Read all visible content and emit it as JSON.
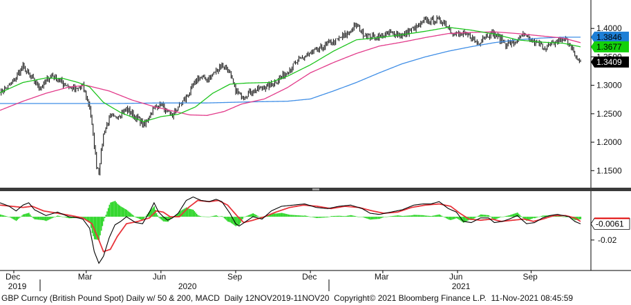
{
  "footer": {
    "caption": "GBP Curncy (British Pound Spot) Daily w/ 50 & 200, MACD  Daily 12NOV2019-11NOV20  Copyright© 2021 Bloomberg Finance L.P.  11-Nov-2021 08:45:59"
  },
  "chart_data": [
    {
      "type": "line",
      "panel": "price",
      "ylim": [
        1.12,
        1.45
      ],
      "yticks": [
        "1.4000",
        "1.3500",
        "1.3000",
        "1.2500",
        "1.2000",
        "1.1500"
      ],
      "x_months": [
        {
          "label": "Dec",
          "i": 12
        },
        {
          "label": "Mar",
          "i": 75
        },
        {
          "label": "Jun",
          "i": 140
        },
        {
          "label": "Sep",
          "i": 205
        },
        {
          "label": "Dec",
          "i": 270
        },
        {
          "label": "Mar",
          "i": 333
        },
        {
          "label": "Jun",
          "i": 398
        },
        {
          "label": "Sep",
          "i": 462
        }
      ],
      "x_years": [
        {
          "label": "2019",
          "i": 7
        },
        {
          "label": "2020",
          "i": 155
        },
        {
          "label": "2021",
          "i": 393
        }
      ],
      "close_points": [
        [
          0,
          1.288
        ],
        [
          10,
          1.302
        ],
        [
          20,
          1.334
        ],
        [
          25,
          1.318
        ],
        [
          35,
          1.296
        ],
        [
          45,
          1.318
        ],
        [
          55,
          1.303
        ],
        [
          66,
          1.292
        ],
        [
          72,
          1.299
        ],
        [
          78,
          1.262
        ],
        [
          84,
          1.16
        ],
        [
          86,
          1.15
        ],
        [
          90,
          1.214
        ],
        [
          95,
          1.243
        ],
        [
          100,
          1.243
        ],
        [
          110,
          1.258
        ],
        [
          118,
          1.244
        ],
        [
          126,
          1.23
        ],
        [
          133,
          1.258
        ],
        [
          140,
          1.268
        ],
        [
          145,
          1.251
        ],
        [
          150,
          1.246
        ],
        [
          155,
          1.263
        ],
        [
          162,
          1.278
        ],
        [
          172,
          1.312
        ],
        [
          182,
          1.312
        ],
        [
          192,
          1.335
        ],
        [
          198,
          1.33
        ],
        [
          205,
          1.29
        ],
        [
          210,
          1.281
        ],
        [
          220,
          1.29
        ],
        [
          228,
          1.296
        ],
        [
          236,
          1.301
        ],
        [
          245,
          1.315
        ],
        [
          255,
          1.334
        ],
        [
          265,
          1.351
        ],
        [
          275,
          1.36
        ],
        [
          285,
          1.372
        ],
        [
          292,
          1.378
        ],
        [
          300,
          1.388
        ],
        [
          310,
          1.406
        ],
        [
          315,
          1.393
        ],
        [
          322,
          1.384
        ],
        [
          330,
          1.386
        ],
        [
          340,
          1.392
        ],
        [
          350,
          1.388
        ],
        [
          356,
          1.395
        ],
        [
          362,
          1.402
        ],
        [
          370,
          1.413
        ],
        [
          378,
          1.415
        ],
        [
          385,
          1.413
        ],
        [
          390,
          1.402
        ],
        [
          395,
          1.39
        ],
        [
          400,
          1.389
        ],
        [
          410,
          1.386
        ],
        [
          416,
          1.372
        ],
        [
          420,
          1.385
        ],
        [
          428,
          1.392
        ],
        [
          435,
          1.382
        ],
        [
          440,
          1.373
        ],
        [
          448,
          1.375
        ],
        [
          455,
          1.388
        ],
        [
          462,
          1.378
        ],
        [
          468,
          1.373
        ],
        [
          474,
          1.366
        ],
        [
          480,
          1.372
        ],
        [
          486,
          1.379
        ],
        [
          492,
          1.382
        ],
        [
          497,
          1.366
        ],
        [
          502,
          1.345
        ],
        [
          505,
          1.3409
        ]
      ],
      "ma50_points": [
        [
          0,
          1.287
        ],
        [
          20,
          1.305
        ],
        [
          40,
          1.313
        ],
        [
          55,
          1.312
        ],
        [
          68,
          1.305
        ],
        [
          78,
          1.297
        ],
        [
          90,
          1.27
        ],
        [
          105,
          1.252
        ],
        [
          125,
          1.236
        ],
        [
          140,
          1.245
        ],
        [
          155,
          1.249
        ],
        [
          170,
          1.262
        ],
        [
          185,
          1.286
        ],
        [
          200,
          1.302
        ],
        [
          215,
          1.304
        ],
        [
          235,
          1.305
        ],
        [
          250,
          1.316
        ],
        [
          270,
          1.336
        ],
        [
          290,
          1.36
        ],
        [
          310,
          1.38
        ],
        [
          330,
          1.384
        ],
        [
          350,
          1.389
        ],
        [
          370,
          1.395
        ],
        [
          390,
          1.402
        ],
        [
          410,
          1.397
        ],
        [
          430,
          1.39
        ],
        [
          450,
          1.38
        ],
        [
          470,
          1.376
        ],
        [
          490,
          1.374
        ],
        [
          505,
          1.3677
        ]
      ],
      "ma200_points": [
        [
          0,
          1.256
        ],
        [
          20,
          1.272
        ],
        [
          40,
          1.286
        ],
        [
          60,
          1.297
        ],
        [
          75,
          1.3
        ],
        [
          95,
          1.29
        ],
        [
          115,
          1.274
        ],
        [
          135,
          1.262
        ],
        [
          150,
          1.255
        ],
        [
          165,
          1.248
        ],
        [
          180,
          1.247
        ],
        [
          195,
          1.254
        ],
        [
          210,
          1.267
        ],
        [
          230,
          1.276
        ],
        [
          250,
          1.296
        ],
        [
          270,
          1.322
        ],
        [
          290,
          1.34
        ],
        [
          310,
          1.356
        ],
        [
          330,
          1.369
        ],
        [
          350,
          1.376
        ],
        [
          370,
          1.384
        ],
        [
          390,
          1.391
        ],
        [
          410,
          1.393
        ],
        [
          430,
          1.394
        ],
        [
          450,
          1.391
        ],
        [
          470,
          1.387
        ],
        [
          490,
          1.383
        ],
        [
          505,
          1.375
        ]
      ],
      "long_ma_points": [
        [
          0,
          1.268
        ],
        [
          50,
          1.268
        ],
        [
          100,
          1.268
        ],
        [
          140,
          1.269
        ],
        [
          180,
          1.269
        ],
        [
          220,
          1.271
        ],
        [
          250,
          1.272
        ],
        [
          270,
          1.276
        ],
        [
          290,
          1.29
        ],
        [
          310,
          1.305
        ],
        [
          330,
          1.322
        ],
        [
          350,
          1.338
        ],
        [
          370,
          1.35
        ],
        [
          390,
          1.36
        ],
        [
          410,
          1.368
        ],
        [
          430,
          1.375
        ],
        [
          450,
          1.38
        ],
        [
          470,
          1.383
        ],
        [
          490,
          1.3846
        ],
        [
          505,
          1.3846
        ]
      ],
      "labels": [
        {
          "text": "1.3846",
          "value": 1.3846,
          "color": "#1d7fd6",
          "text_color": "#000000"
        },
        {
          "text": "1.3677",
          "value": 1.3677,
          "color": "#14d10b",
          "text_color": "#000000"
        },
        {
          "text": "1.3409",
          "value": 1.3409,
          "color": "#000000",
          "text_color": "#ffffff"
        }
      ],
      "colors": {
        "close": "#000000",
        "ma50": "#1ec41e",
        "ma200": "#e23a8a",
        "long_ma": "#3f8ee6"
      }
    },
    {
      "type": "line",
      "panel": "macd",
      "ylim": [
        -0.045,
        0.022
      ],
      "yticks": [
        "-0.02"
      ],
      "macd_points": [
        [
          0,
          0.012
        ],
        [
          8,
          0.009
        ],
        [
          14,
          0.005
        ],
        [
          20,
          0.01
        ],
        [
          25,
          0.012
        ],
        [
          30,
          0.006
        ],
        [
          40,
          0.001
        ],
        [
          50,
          0.004
        ],
        [
          60,
          0.0
        ],
        [
          68,
          -0.001
        ],
        [
          72,
          -0.002
        ],
        [
          78,
          -0.01
        ],
        [
          82,
          -0.03
        ],
        [
          86,
          -0.04
        ],
        [
          90,
          -0.034
        ],
        [
          95,
          -0.018
        ],
        [
          100,
          -0.007
        ],
        [
          105,
          -0.004
        ],
        [
          110,
          0.0
        ],
        [
          118,
          -0.005
        ],
        [
          124,
          -0.006
        ],
        [
          130,
          0.004
        ],
        [
          134,
          0.012
        ],
        [
          138,
          0.004
        ],
        [
          142,
          0.0
        ],
        [
          146,
          -0.003
        ],
        [
          150,
          -0.001
        ],
        [
          155,
          0.003
        ],
        [
          162,
          0.014
        ],
        [
          168,
          0.017
        ],
        [
          175,
          0.014
        ],
        [
          182,
          0.013
        ],
        [
          188,
          0.015
        ],
        [
          193,
          0.013
        ],
        [
          200,
          0.003
        ],
        [
          205,
          -0.006
        ],
        [
          208,
          -0.008
        ],
        [
          214,
          -0.004
        ],
        [
          220,
          0.0
        ],
        [
          228,
          -0.002
        ],
        [
          236,
          0.005
        ],
        [
          245,
          0.009
        ],
        [
          255,
          0.01
        ],
        [
          265,
          0.011
        ],
        [
          275,
          0.008
        ],
        [
          285,
          0.007
        ],
        [
          295,
          0.009
        ],
        [
          305,
          0.01
        ],
        [
          315,
          0.007
        ],
        [
          322,
          0.003
        ],
        [
          330,
          0.002
        ],
        [
          340,
          0.004
        ],
        [
          350,
          0.006
        ],
        [
          360,
          0.01
        ],
        [
          368,
          0.011
        ],
        [
          375,
          0.011
        ],
        [
          382,
          0.013
        ],
        [
          390,
          0.007
        ],
        [
          397,
          0.004
        ],
        [
          403,
          -0.004
        ],
        [
          410,
          -0.005
        ],
        [
          418,
          -0.001
        ],
        [
          425,
          -0.001
        ],
        [
          430,
          -0.005
        ],
        [
          437,
          -0.004
        ],
        [
          443,
          -0.002
        ],
        [
          450,
          0.001
        ],
        [
          458,
          -0.006
        ],
        [
          465,
          -0.005
        ],
        [
          472,
          -0.001
        ],
        [
          478,
          0.001
        ],
        [
          485,
          0.002
        ],
        [
          490,
          0.001
        ],
        [
          495,
          0.0
        ],
        [
          500,
          -0.004
        ],
        [
          505,
          -0.0061
        ]
      ],
      "signal_points": [
        [
          0,
          0.01
        ],
        [
          10,
          0.009
        ],
        [
          20,
          0.008
        ],
        [
          28,
          0.009
        ],
        [
          38,
          0.005
        ],
        [
          50,
          0.003
        ],
        [
          62,
          0.001
        ],
        [
          72,
          -0.001
        ],
        [
          80,
          -0.006
        ],
        [
          86,
          -0.02
        ],
        [
          90,
          -0.03
        ],
        [
          96,
          -0.028
        ],
        [
          102,
          -0.017
        ],
        [
          110,
          -0.006
        ],
        [
          120,
          -0.004
        ],
        [
          130,
          -0.001
        ],
        [
          136,
          0.005
        ],
        [
          142,
          0.004
        ],
        [
          148,
          0.0
        ],
        [
          156,
          0.0
        ],
        [
          164,
          0.008
        ],
        [
          172,
          0.014
        ],
        [
          182,
          0.013
        ],
        [
          190,
          0.014
        ],
        [
          198,
          0.01
        ],
        [
          206,
          0.001
        ],
        [
          212,
          -0.005
        ],
        [
          220,
          -0.003
        ],
        [
          230,
          0.0
        ],
        [
          240,
          0.004
        ],
        [
          252,
          0.008
        ],
        [
          264,
          0.01
        ],
        [
          276,
          0.009
        ],
        [
          288,
          0.007
        ],
        [
          300,
          0.009
        ],
        [
          312,
          0.008
        ],
        [
          324,
          0.005
        ],
        [
          334,
          0.003
        ],
        [
          346,
          0.004
        ],
        [
          358,
          0.008
        ],
        [
          370,
          0.01
        ],
        [
          382,
          0.011
        ],
        [
          392,
          0.009
        ],
        [
          400,
          0.003
        ],
        [
          408,
          -0.002
        ],
        [
          418,
          -0.003
        ],
        [
          428,
          -0.002
        ],
        [
          436,
          -0.004
        ],
        [
          446,
          -0.003
        ],
        [
          456,
          -0.002
        ],
        [
          464,
          -0.004
        ],
        [
          472,
          -0.002
        ],
        [
          482,
          0.001
        ],
        [
          492,
          0.001
        ],
        [
          500,
          -0.001
        ],
        [
          505,
          -0.004
        ]
      ],
      "labels": [
        {
          "text": "-0.0061",
          "value": -0.0061,
          "color": "#ffffff",
          "text_color": "#000000",
          "border": "#000000"
        }
      ],
      "colors": {
        "macd": "#000000",
        "signal": "#e8333a",
        "hist": "#2fd62a"
      }
    }
  ]
}
